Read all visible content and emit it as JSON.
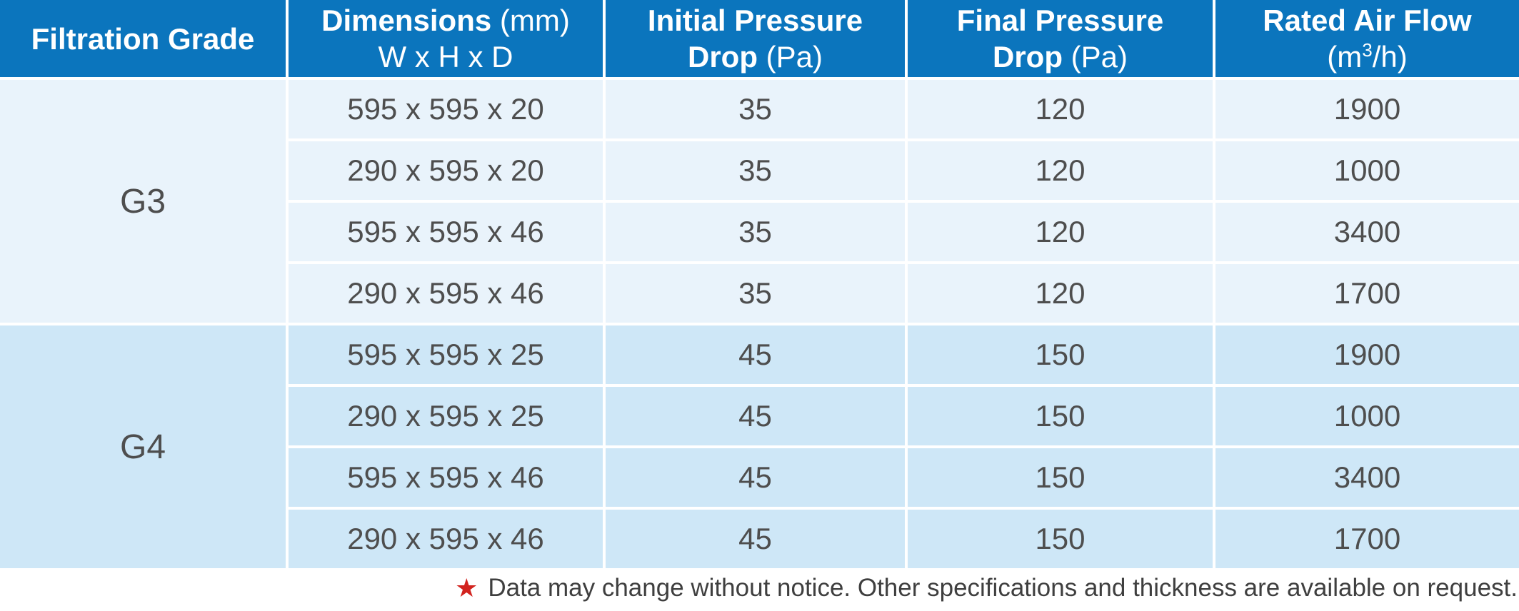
{
  "table": {
    "headers": [
      {
        "line1_bold": "Filtration Grade",
        "line1_reg": "",
        "line2_bold": "",
        "line2_reg": ""
      },
      {
        "line1_bold": "Dimensions",
        "line1_reg": " (mm)",
        "line2_bold": "",
        "line2_reg": "W x H x D"
      },
      {
        "line1_bold": "Initial Pressure",
        "line1_reg": "",
        "line2_bold": "Drop",
        "line2_reg": " (Pa)"
      },
      {
        "line1_bold": "Final Pressure",
        "line1_reg": "",
        "line2_bold": "Drop",
        "line2_reg": " (Pa)"
      },
      {
        "line1_bold": "Rated Air Flow",
        "line1_reg": "",
        "unit_pre": "(m",
        "unit_sup": "3",
        "unit_post": "/h)"
      }
    ],
    "groups": [
      {
        "grade": "G3",
        "rows": [
          {
            "dimensions": "595 x 595 x 20",
            "initial_pressure_drop": "35",
            "final_pressure_drop": "120",
            "rated_air_flow": "1900"
          },
          {
            "dimensions": "290 x 595 x 20",
            "initial_pressure_drop": "35",
            "final_pressure_drop": "120",
            "rated_air_flow": "1000"
          },
          {
            "dimensions": "595 x 595 x 46",
            "initial_pressure_drop": "35",
            "final_pressure_drop": "120",
            "rated_air_flow": "3400"
          },
          {
            "dimensions": "290 x 595 x 46",
            "initial_pressure_drop": "35",
            "final_pressure_drop": "120",
            "rated_air_flow": "1700"
          }
        ]
      },
      {
        "grade": "G4",
        "rows": [
          {
            "dimensions": "595 x 595 x 25",
            "initial_pressure_drop": "45",
            "final_pressure_drop": "150",
            "rated_air_flow": "1900"
          },
          {
            "dimensions": "290 x 595 x 25",
            "initial_pressure_drop": "45",
            "final_pressure_drop": "150",
            "rated_air_flow": "1000"
          },
          {
            "dimensions": "595 x 595 x 46",
            "initial_pressure_drop": "45",
            "final_pressure_drop": "150",
            "rated_air_flow": "3400"
          },
          {
            "dimensions": "290 x 595 x 46",
            "initial_pressure_drop": "45",
            "final_pressure_drop": "150",
            "rated_air_flow": "1700"
          }
        ]
      }
    ]
  },
  "footnote": {
    "star": "★",
    "text": "Data may change without notice. Other specifications and thickness are available on request."
  },
  "colors": {
    "header_bg": "#0b75bd",
    "g3_bg": "#e9f3fb",
    "g4_bg": "#cee7f7",
    "body_text": "#4e4e4e",
    "note_text": "#3f3f3f",
    "star_red": "#d2231e",
    "grid_line": "#ffffff"
  }
}
